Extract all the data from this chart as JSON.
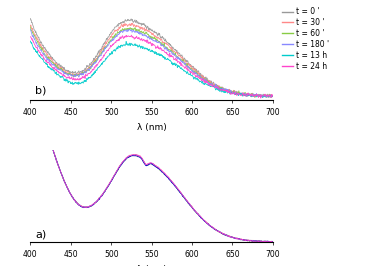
{
  "wavelength_range": [
    400,
    700
  ],
  "legend_labels": [
    "t = 0 '",
    "t = 30 '",
    "t = 60 '",
    "t = 180 '",
    "t = 13 h",
    "t = 24 h"
  ],
  "legend_colors_b": [
    "#999999",
    "#ff8888",
    "#88cc44",
    "#8888ff",
    "#00cccc",
    "#ff44cc"
  ],
  "legend_colors_a": [
    "#999999",
    "#ff8888",
    "#88cc44",
    "#8888ff",
    "#0000cc",
    "#ff44cc"
  ],
  "xlabel": "λ (nm)",
  "label_a": "a)",
  "label_b": "b)",
  "panel_b_ylim": [
    -0.02,
    0.52
  ],
  "panel_a_ylim": [
    0.0,
    1.08
  ],
  "seed": 42
}
